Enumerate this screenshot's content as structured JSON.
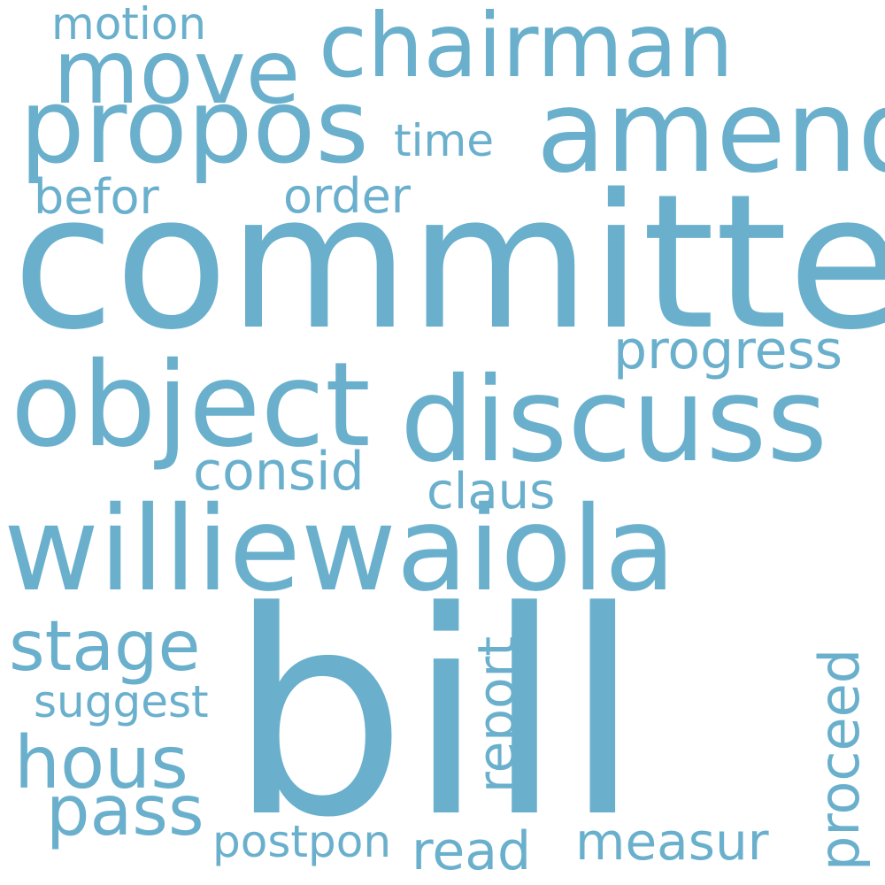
{
  "accent_color": "#6ab0cd",
  "background_color": "#ffffff",
  "words": {
    "committe": "committe",
    "bill": "bill",
    "williewaiola": "williewaiola",
    "discuss": "discuss",
    "object": "object",
    "amend": "amend",
    "propos": "propos",
    "chairman": "chairman",
    "move": "move",
    "stage": "stage",
    "hous": "hous",
    "pass": "pass",
    "motion": "motion",
    "time": "time",
    "befor": "befor",
    "order": "order",
    "progress": "progress",
    "consid": "consid",
    "claus": "claus",
    "suggest": "suggest",
    "report": "report",
    "proceed": "proceed",
    "postpon": "postpon",
    "read": "read",
    "measur": "measur"
  }
}
